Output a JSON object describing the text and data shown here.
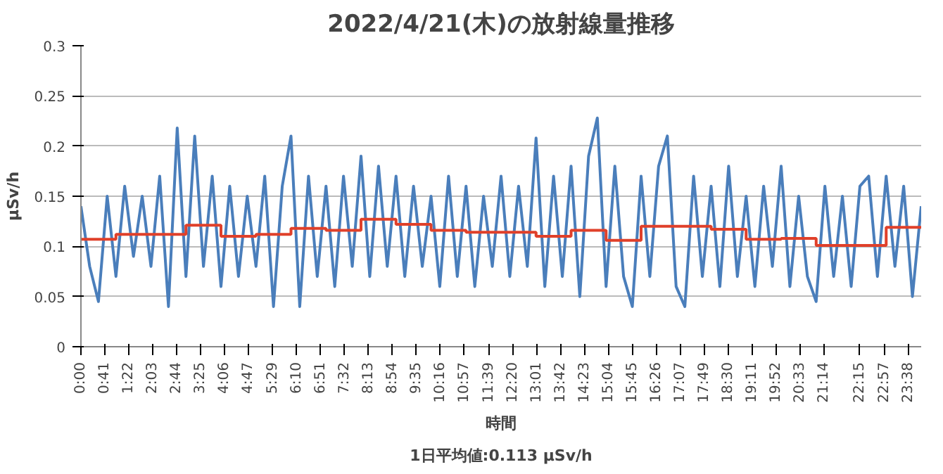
{
  "chart_data": {
    "type": "line",
    "title": "2022/4/21(木)の放射線量推移",
    "xlabel": "時間",
    "ylabel": "µSv/h",
    "annotations": [
      "1日平均値:0.113 µSv/h"
    ],
    "xlim": [
      0,
      24
    ],
    "ylim": [
      0,
      0.3
    ],
    "yticks": [
      0,
      0.05,
      0.1,
      0.15,
      0.2,
      0.25,
      0.3
    ],
    "xticks": [
      {
        "value": 0,
        "label": "0:00"
      },
      {
        "value": 0.6833,
        "label": "0:41"
      },
      {
        "value": 1.3667,
        "label": "1:22"
      },
      {
        "value": 2.05,
        "label": "2:03"
      },
      {
        "value": 2.7333,
        "label": "2:44"
      },
      {
        "value": 3.4167,
        "label": "3:25"
      },
      {
        "value": 4.1,
        "label": "4:06"
      },
      {
        "value": 4.7833,
        "label": "4:47"
      },
      {
        "value": 5.4833,
        "label": "5:29"
      },
      {
        "value": 6.1667,
        "label": "6:10"
      },
      {
        "value": 6.85,
        "label": "6:51"
      },
      {
        "value": 7.5333,
        "label": "7:32"
      },
      {
        "value": 8.2167,
        "label": "8:13"
      },
      {
        "value": 8.9,
        "label": "8:54"
      },
      {
        "value": 9.5833,
        "label": "9:35"
      },
      {
        "value": 10.2667,
        "label": "10:16"
      },
      {
        "value": 10.95,
        "label": "10:57"
      },
      {
        "value": 11.65,
        "label": "11:39"
      },
      {
        "value": 12.3333,
        "label": "12:20"
      },
      {
        "value": 13.0167,
        "label": "13:01"
      },
      {
        "value": 13.7,
        "label": "13:42"
      },
      {
        "value": 14.3833,
        "label": "14:23"
      },
      {
        "value": 15.0667,
        "label": "15:04"
      },
      {
        "value": 15.75,
        "label": "15:45"
      },
      {
        "value": 16.4333,
        "label": "16:26"
      },
      {
        "value": 17.1167,
        "label": "17:07"
      },
      {
        "value": 17.8167,
        "label": "17:49"
      },
      {
        "value": 18.5,
        "label": "18:30"
      },
      {
        "value": 19.1833,
        "label": "19:11"
      },
      {
        "value": 19.8667,
        "label": "19:52"
      },
      {
        "value": 20.55,
        "label": "20:33"
      },
      {
        "value": 21.2333,
        "label": "21:14"
      },
      {
        "value": 22.25,
        "label": "22:15"
      },
      {
        "value": 22.95,
        "label": "22:57"
      },
      {
        "value": 23.6333,
        "label": "23:38"
      }
    ],
    "grid": "y",
    "marker": "none",
    "line_style": "solid",
    "series": [
      {
        "color": "#4a7ebb",
        "x": [
          0,
          0.25,
          0.5,
          0.75,
          1,
          1.25,
          1.5,
          1.75,
          2,
          2.25,
          2.5,
          2.75,
          3,
          3.25,
          3.5,
          3.75,
          4,
          4.25,
          4.5,
          4.75,
          5,
          5.25,
          5.5,
          5.75,
          6,
          6.25,
          6.5,
          6.75,
          7,
          7.25,
          7.5,
          7.75,
          8,
          8.25,
          8.5,
          8.75,
          9,
          9.25,
          9.5,
          9.75,
          10,
          10.25,
          10.5,
          10.75,
          11,
          11.25,
          11.5,
          11.75,
          12,
          12.25,
          12.5,
          12.75,
          13,
          13.25,
          13.5,
          13.75,
          14,
          14.25,
          14.5,
          14.75,
          15,
          15.25,
          15.5,
          15.75,
          16,
          16.25,
          16.5,
          16.75,
          17,
          17.25,
          17.5,
          17.75,
          18,
          18.25,
          18.5,
          18.75,
          19,
          19.25,
          19.5,
          19.75,
          20,
          20.25,
          20.5,
          20.75,
          21,
          21.25,
          21.5,
          21.75,
          22,
          22.25,
          22.5,
          22.75,
          23,
          23.25,
          23.5,
          23.75,
          24
        ],
        "values": [
          0.14,
          0.08,
          0.045,
          0.15,
          0.07,
          0.16,
          0.09,
          0.15,
          0.08,
          0.17,
          0.04,
          0.218,
          0.07,
          0.21,
          0.08,
          0.17,
          0.06,
          0.16,
          0.07,
          0.15,
          0.08,
          0.17,
          0.04,
          0.16,
          0.21,
          0.04,
          0.17,
          0.07,
          0.16,
          0.06,
          0.17,
          0.08,
          0.19,
          0.07,
          0.18,
          0.08,
          0.17,
          0.07,
          0.16,
          0.08,
          0.15,
          0.06,
          0.17,
          0.07,
          0.16,
          0.06,
          0.15,
          0.08,
          0.17,
          0.07,
          0.16,
          0.08,
          0.208,
          0.06,
          0.17,
          0.07,
          0.18,
          0.05,
          0.19,
          0.228,
          0.06,
          0.18,
          0.07,
          0.04,
          0.17,
          0.07,
          0.18,
          0.21,
          0.06,
          0.04,
          0.17,
          0.07,
          0.16,
          0.06,
          0.18,
          0.07,
          0.15,
          0.06,
          0.16,
          0.08,
          0.18,
          0.06,
          0.15,
          0.07,
          0.045,
          0.16,
          0.07,
          0.15,
          0.06,
          0.16,
          0.17,
          0.07,
          0.17,
          0.08,
          0.16,
          0.05,
          0.14
        ]
      },
      {
        "type": "step",
        "color": "#e0402a",
        "x": [
          0,
          1,
          2,
          3,
          4,
          5,
          6,
          7,
          8,
          9,
          10,
          11,
          12,
          13,
          14,
          15,
          16,
          17,
          18,
          19,
          20,
          21,
          22,
          23,
          24
        ],
        "values": [
          0.107,
          0.112,
          0.112,
          0.121,
          0.11,
          0.112,
          0.118,
          0.116,
          0.127,
          0.122,
          0.116,
          0.114,
          0.114,
          0.11,
          0.116,
          0.106,
          0.12,
          0.12,
          0.117,
          0.107,
          0.108,
          0.101,
          0.101,
          0.119,
          0.119
        ]
      }
    ]
  }
}
